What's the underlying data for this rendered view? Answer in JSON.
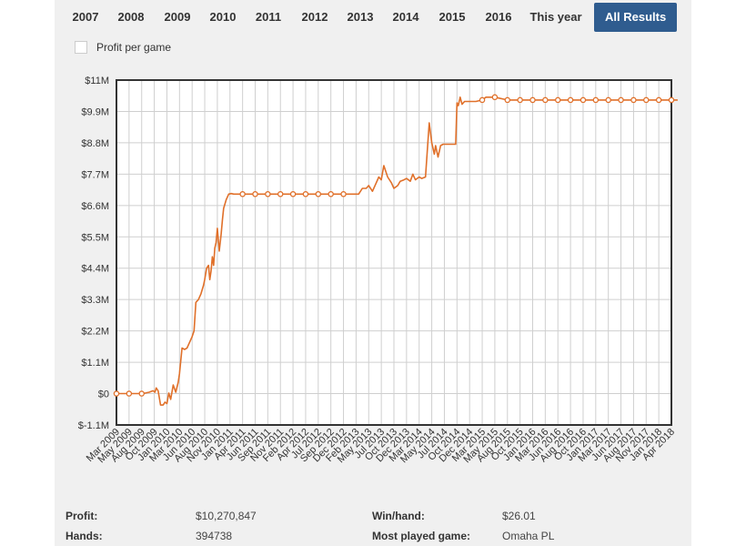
{
  "year_tabs": [
    {
      "label": "2007"
    },
    {
      "label": "2008"
    },
    {
      "label": "2009"
    },
    {
      "label": "2010"
    },
    {
      "label": "2011"
    },
    {
      "label": "2012"
    },
    {
      "label": "2013"
    },
    {
      "label": "2014"
    },
    {
      "label": "2015"
    },
    {
      "label": "2016"
    },
    {
      "label": "This year"
    },
    {
      "label": "All Results",
      "active": true
    }
  ],
  "profit_per_game": {
    "label": "Profit per game",
    "checked": false
  },
  "stats": {
    "profit_label": "Profit:",
    "profit_value": "$10,270,847",
    "hands_label": "Hands:",
    "hands_value": "394738",
    "winhand_label": "Win/hand:",
    "winhand_value": "$26.01",
    "most_played_label": "Most played game:",
    "most_played_value": "Omaha PL"
  },
  "colors": {
    "line": "#e0702a",
    "active_tab": "#2f5c8f",
    "panel": "#f0f0f0",
    "grid": "#cfcfcf"
  },
  "chart_data": {
    "type": "line",
    "title": "",
    "xlabel": "",
    "ylabel": "",
    "legend": "none",
    "grid": true,
    "x_categories": [
      "Mar 2009",
      "May 2009",
      "Aug 2009",
      "Oct 2009",
      "Jan 2010",
      "Mar 2010",
      "Jun 2010",
      "Aug 2010",
      "Nov 2010",
      "Jan 2011",
      "Apr 2011",
      "Jun 2011",
      "Sep 2011",
      "Nov 2011",
      "Feb 2012",
      "Apr 2012",
      "Jul 2012",
      "Sep 2012",
      "Dec 2012",
      "Feb 2013",
      "May 2013",
      "Jul 2013",
      "Oct 2013",
      "Dec 2013",
      "Mar 2014",
      "May 2014",
      "Jul 2014",
      "Oct 2014",
      "Dec 2014",
      "Mar 2015",
      "May 2015",
      "Aug 2015",
      "Oct 2015",
      "Jan 2016",
      "Mar 2016",
      "Jun 2016",
      "Aug 2016",
      "Oct 2016",
      "Jan 2017",
      "Mar 2017",
      "Jun 2017",
      "Aug 2017",
      "Nov 2017",
      "Jan 2018",
      "Apr 2018"
    ],
    "y_ticks": [
      "$-1.1M",
      "$0",
      "$1.1M",
      "$2.2M",
      "$3.3M",
      "$4.4M",
      "$5.5M",
      "$6.6M",
      "$7.7M",
      "$8.8M",
      "$9.9M",
      "$11M"
    ],
    "ylim": [
      -1.1,
      11
    ],
    "y_unit": "$M",
    "series": [
      {
        "x": [
          0,
          1,
          2,
          2.3,
          2.6,
          2.9,
          3.05,
          3.15,
          3.3,
          3.5,
          3.7,
          3.85,
          4.0,
          4.15,
          4.3,
          4.5,
          4.7,
          4.9,
          5.0,
          5.2,
          5.4,
          5.6,
          5.8,
          6.0,
          6.15,
          6.3,
          6.5,
          6.7,
          6.9,
          7.0,
          7.15,
          7.3,
          7.4,
          7.5,
          7.6,
          7.7,
          7.8,
          7.9,
          8.0,
          8.15,
          8.3,
          8.4,
          8.5,
          8.7,
          8.9,
          9.1,
          9.3,
          9.6,
          10,
          11,
          12,
          13,
          14,
          15,
          16,
          17,
          18,
          18.5,
          18.9,
          19.2,
          19.5,
          19.8,
          20.0,
          20.3,
          20.6,
          20.8,
          21.0,
          21.2,
          21.5,
          21.8,
          22.0,
          22.3,
          22.5,
          22.8,
          23.0,
          23.3,
          23.5,
          23.7,
          24.0,
          24.2,
          24.5,
          24.8,
          25.0,
          25.2,
          25.3,
          25.5,
          25.7,
          25.9,
          26.1,
          26.5,
          26.9,
          27.0,
          27.1,
          27.25,
          27.4,
          27.6,
          28,
          28.5,
          29,
          29.3,
          30,
          31,
          32,
          33,
          34,
          35,
          36,
          37,
          38,
          39,
          40,
          41,
          42,
          43,
          44,
          44.5
        ],
        "y": [
          0,
          0,
          0,
          0.02,
          0.05,
          0.1,
          0.05,
          0.2,
          0.1,
          -0.4,
          -0.4,
          -0.3,
          -0.35,
          0.02,
          -0.2,
          0.3,
          0.05,
          0.4,
          0.7,
          1.6,
          1.55,
          1.6,
          1.8,
          2.0,
          2.2,
          3.2,
          3.3,
          3.5,
          3.8,
          4.0,
          4.4,
          4.5,
          4.0,
          4.3,
          4.8,
          4.5,
          5.1,
          5.3,
          5.8,
          5.0,
          5.6,
          6.1,
          6.5,
          6.8,
          7.0,
          7.02,
          7.0,
          7.0,
          7.0,
          7.0,
          7.0,
          7.0,
          7.0,
          7.0,
          7.0,
          7.0,
          7.0,
          7.0,
          7.0,
          7.0,
          7.2,
          7.2,
          7.3,
          7.1,
          7.4,
          7.6,
          7.5,
          8.0,
          7.6,
          7.4,
          7.2,
          7.3,
          7.45,
          7.5,
          7.55,
          7.45,
          7.7,
          7.5,
          7.6,
          7.55,
          7.6,
          9.5,
          8.8,
          8.4,
          8.7,
          8.3,
          8.7,
          8.75,
          8.75,
          8.75,
          8.75,
          10.2,
          10.1,
          10.4,
          10.15,
          10.25,
          10.25,
          10.25,
          10.3,
          10.4,
          10.4,
          10.3,
          10.3,
          10.3,
          10.3,
          10.3,
          10.3,
          10.3,
          10.3,
          10.3,
          10.3,
          10.3,
          10.3,
          10.3,
          10.3,
          10.3
        ]
      }
    ]
  }
}
